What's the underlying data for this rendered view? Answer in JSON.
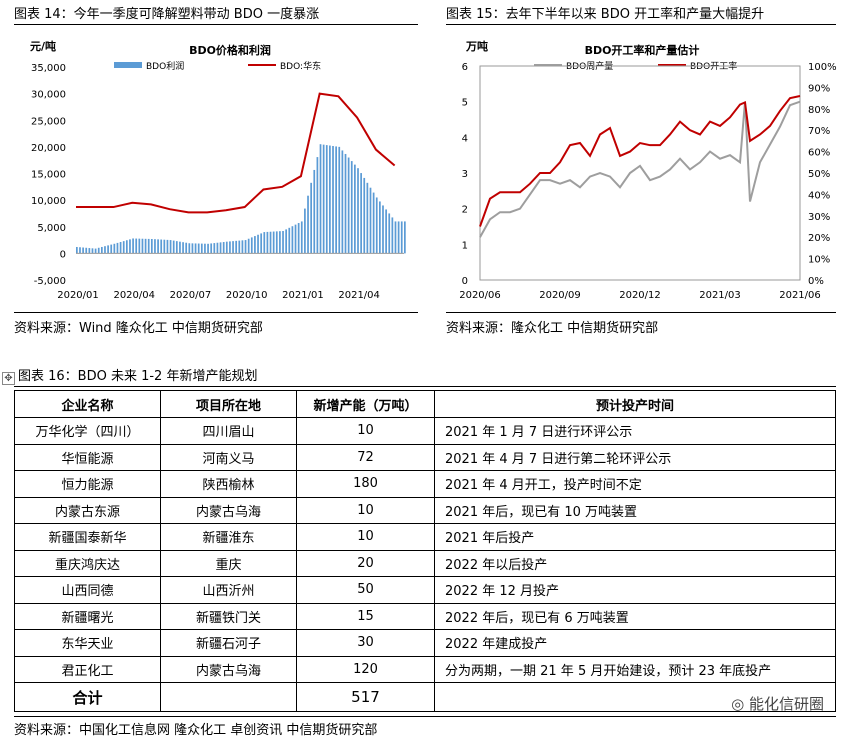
{
  "fig14": {
    "label": "图表 14：今年一季度可降解塑料带动 BDO 一度暴涨",
    "source": "资料来源：Wind 隆众化工 中信期货研究部"
  },
  "fig15": {
    "label": "图表 15：去年下半年以来 BDO 开工率和产量大幅提升",
    "source": "资料来源：隆众化工 中信期货研究部"
  },
  "fig16": {
    "label": "图表 16：BDO 未来 1-2 年新增产能规划",
    "source": "资料来源：中国化工信息网 隆众化工 卓创资讯 中信期货研究部"
  },
  "watermark": "能化信研圈",
  "chart_data": [
    {
      "type": "bar+line",
      "title": "BDO价格和利润",
      "ylabel": "元/吨",
      "ylim": [
        -5000,
        35000
      ],
      "yticks": [
        "35,000",
        "30,000",
        "25,000",
        "20,000",
        "15,000",
        "10,000",
        "5,000",
        "0",
        "-5,000"
      ],
      "xticks": [
        "2020/01",
        "2020/04",
        "2020/07",
        "2020/10",
        "2021/01",
        "2021/04"
      ],
      "legend_position": "top",
      "series": [
        {
          "name": "BDO利润",
          "type": "bar",
          "color": "#5b9bd5",
          "x": [
            "2020-01",
            "2020-02",
            "2020-03",
            "2020-04",
            "2020-05",
            "2020-06",
            "2020-07",
            "2020-08",
            "2020-09",
            "2020-10",
            "2020-11",
            "2020-12",
            "2021-01",
            "2021-02",
            "2021-03",
            "2021-04",
            "2021-05",
            "2021-06"
          ],
          "values": [
            1200,
            900,
            1800,
            2800,
            2700,
            2500,
            1900,
            1800,
            2200,
            2500,
            4000,
            4200,
            6000,
            20500,
            20000,
            16000,
            10500,
            6000
          ]
        },
        {
          "name": "BDO:华东",
          "type": "line",
          "color": "#c00000",
          "x": [
            "2020-01",
            "2020-02",
            "2020-03",
            "2020-04",
            "2020-05",
            "2020-06",
            "2020-07",
            "2020-08",
            "2020-09",
            "2020-10",
            "2020-11",
            "2020-12",
            "2021-01",
            "2021-02",
            "2021-03",
            "2021-04",
            "2021-05",
            "2021-06"
          ],
          "values": [
            8700,
            8700,
            8700,
            9500,
            9200,
            8300,
            7700,
            7700,
            8100,
            8700,
            12000,
            12500,
            14500,
            30000,
            29500,
            25500,
            19500,
            16500
          ]
        }
      ]
    },
    {
      "type": "line",
      "title": "BDO开工率和产量估计",
      "ylabel": "万吨",
      "ylim": [
        0,
        6
      ],
      "y2lim": [
        0,
        100
      ],
      "yticks": [
        "6",
        "5",
        "4",
        "3",
        "2",
        "1",
        "0"
      ],
      "y2ticks": [
        "100%",
        "90%",
        "80%",
        "70%",
        "60%",
        "50%",
        "40%",
        "30%",
        "20%",
        "10%",
        "0%"
      ],
      "xticks": [
        "2020/06",
        "2020/09",
        "2020/12",
        "2021/03",
        "2021/06"
      ],
      "legend_position": "top",
      "series": [
        {
          "name": "BDO周产量",
          "axis": "left",
          "color": "#9e9e9e",
          "x": [
            0,
            2,
            4,
            6,
            8,
            10,
            12,
            14,
            16,
            18,
            20,
            22,
            24,
            26,
            28,
            30,
            32,
            34,
            36,
            38,
            40,
            42,
            44,
            46,
            48,
            50,
            52,
            53,
            54,
            56,
            58,
            60,
            62,
            64
          ],
          "values": [
            1.2,
            1.7,
            1.9,
            1.9,
            2.0,
            2.4,
            2.8,
            2.8,
            2.7,
            2.8,
            2.6,
            2.9,
            3.0,
            2.9,
            2.6,
            3.0,
            3.2,
            2.8,
            2.9,
            3.1,
            3.4,
            3.1,
            3.3,
            3.6,
            3.4,
            3.5,
            3.3,
            5.0,
            2.2,
            3.3,
            3.8,
            4.3,
            4.9,
            5.0
          ]
        },
        {
          "name": "BDO开工率",
          "axis": "right",
          "color": "#c00000",
          "x": [
            0,
            2,
            4,
            6,
            8,
            10,
            12,
            14,
            16,
            18,
            20,
            22,
            24,
            26,
            28,
            30,
            32,
            34,
            36,
            38,
            40,
            42,
            44,
            46,
            48,
            50,
            52,
            53,
            54,
            56,
            58,
            60,
            62,
            64
          ],
          "values": [
            25,
            38,
            41,
            41,
            41,
            45,
            50,
            50,
            55,
            63,
            64,
            58,
            68,
            71,
            58,
            60,
            64,
            63,
            63,
            68,
            74,
            70,
            68,
            74,
            72,
            76,
            82,
            83,
            65,
            68,
            72,
            79,
            85,
            86
          ]
        }
      ]
    }
  ],
  "table": {
    "headers": [
      "企业名称",
      "项目所在地",
      "新增产能（万吨）",
      "预计投产时间"
    ],
    "rows": [
      [
        "万华化学（四川）",
        "四川眉山",
        "10",
        "2021 年 1 月 7 日进行环评公示"
      ],
      [
        "华恒能源",
        "河南义马",
        "72",
        "2021 年 4 月 7 日进行第二轮环评公示"
      ],
      [
        "恒力能源",
        "陕西榆林",
        "180",
        "2021 年 4 月开工，投产时间不定"
      ],
      [
        "内蒙古东源",
        "内蒙古乌海",
        "10",
        "2021 年后，现已有 10 万吨装置"
      ],
      [
        "新疆国泰新华",
        "新疆淮东",
        "10",
        "2021 年后投产"
      ],
      [
        "重庆鸿庆达",
        "重庆",
        "20",
        "2022 年以后投产"
      ],
      [
        "山西同德",
        "山西沂州",
        "50",
        "2022 年 12 月投产"
      ],
      [
        "新疆曙光",
        "新疆铁门关",
        "15",
        "2022 年后，现已有 6 万吨装置"
      ],
      [
        "东华天业",
        "新疆石河子",
        "30",
        "2022 年建成投产"
      ],
      [
        "君正化工",
        "内蒙古乌海",
        "120",
        "分为两期，一期 21 年 5 月开始建设，预计 23 年底投产"
      ]
    ],
    "total_label": "合计",
    "total_value": "517"
  }
}
